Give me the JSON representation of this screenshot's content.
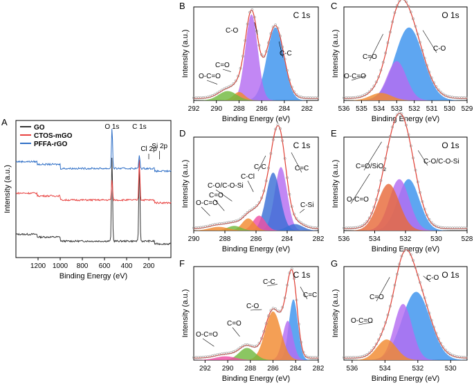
{
  "colors": {
    "GO": "#333333",
    "CTOS": "#e8413f",
    "PFFA": "#2f6fc6",
    "envelope": "#e03c31",
    "blue": "#3b93ee",
    "purple": "#b46cf2",
    "orange": "#f28a30",
    "green": "#72b93f",
    "pink": "#ee4fa4",
    "navy": "#3a6fd6",
    "red": "#e8413f",
    "orange2": "#e86a3a"
  },
  "chart_data": [
    {
      "panel": "A",
      "type": "line",
      "xlabel": "Binding Energy (eV)",
      "ylabel": "Intensity (a.u.)",
      "xlim": [
        1400,
        0
      ],
      "reversed": true,
      "xticks": [
        1200,
        1000,
        800,
        600,
        400,
        200
      ],
      "legend": [
        "GO",
        "CTOS-mGO",
        "PFFA-rGO"
      ],
      "annotations": [
        "O 1s",
        "C 1s",
        "Cl 2p",
        "Si 2p"
      ],
      "series": [
        {
          "name": "GO",
          "peaks": [
            {
              "x": 532,
              "h": 0.62
            },
            {
              "x": 285,
              "h": 0.6
            }
          ],
          "baseline": 0.12
        },
        {
          "name": "CTOS-mGO",
          "peaks": [
            {
              "x": 532,
              "h": 0.15
            },
            {
              "x": 285,
              "h": 0.3
            }
          ],
          "baseline": 0.42
        },
        {
          "name": "PFFA-rGO",
          "peaks": [
            {
              "x": 532,
              "h": 0.3
            },
            {
              "x": 285,
              "h": 0.1
            }
          ],
          "baseline": 0.65
        }
      ]
    },
    {
      "panel": "B",
      "type": "area",
      "title": "C 1s",
      "xlabel": "Binding Energy (eV)",
      "ylabel": "Intensity (a.u.)",
      "xlim": [
        292,
        281
      ],
      "xticks": [
        292,
        290,
        288,
        286,
        284,
        282
      ],
      "components": [
        {
          "label": "C-C",
          "center": 284.8,
          "height": 0.78,
          "width": 0.75,
          "color": "blue"
        },
        {
          "label": "C-O",
          "center": 286.9,
          "height": 0.92,
          "width": 0.55,
          "color": "purple"
        },
        {
          "label": "C=O",
          "center": 288.0,
          "height": 0.09,
          "width": 0.5,
          "color": "orange"
        },
        {
          "label": "O-C=O",
          "center": 289.0,
          "height": 0.1,
          "width": 0.8,
          "color": "green"
        }
      ]
    },
    {
      "panel": "C",
      "type": "area",
      "title": "O 1s",
      "xlabel": "Binding Energy (eV)",
      "ylabel": "Intensity (a.u.)",
      "xlim": [
        536,
        529
      ],
      "xticks": [
        536,
        535,
        534,
        533,
        532,
        531,
        530,
        529
      ],
      "components": [
        {
          "label": "C-O",
          "center": 532.3,
          "height": 0.78,
          "width": 0.8,
          "color": "blue"
        },
        {
          "label": "C=O",
          "center": 533.0,
          "height": 0.42,
          "width": 0.55,
          "color": "purple"
        },
        {
          "label": "O-C=O",
          "center": 533.9,
          "height": 0.08,
          "width": 0.6,
          "color": "orange"
        }
      ]
    },
    {
      "panel": "D",
      "type": "area",
      "title": "C 1s",
      "xlabel": "Binding Energy (eV)",
      "ylabel": "Intensity (a.u.)",
      "xlim": [
        290,
        282
      ],
      "xticks": [
        290,
        288,
        286,
        284,
        282
      ],
      "components": [
        {
          "label": "C=C",
          "center": 284.4,
          "height": 0.68,
          "width": 0.4,
          "color": "purple"
        },
        {
          "label": "C-C",
          "center": 284.9,
          "height": 0.62,
          "width": 0.45,
          "color": "navy"
        },
        {
          "label": "C-Si",
          "center": 283.5,
          "height": 0.07,
          "width": 0.5,
          "color": "navy"
        },
        {
          "label": "C-Cl",
          "center": 285.8,
          "height": 0.16,
          "width": 0.4,
          "color": "pink"
        },
        {
          "label": "C-O/C-O-Si",
          "center": 286.5,
          "height": 0.13,
          "width": 0.4,
          "color": "orange"
        },
        {
          "label": "C=O",
          "center": 287.4,
          "height": 0.05,
          "width": 0.45,
          "color": "green"
        },
        {
          "label": "O-C=O",
          "center": 288.4,
          "height": 0.04,
          "width": 0.6,
          "color": "orange"
        }
      ]
    },
    {
      "panel": "E",
      "type": "area",
      "title": "O 1s",
      "xlabel": "Binding Energy (eV)",
      "ylabel": "Intensity (a.u.)",
      "xlim": [
        536,
        528
      ],
      "xticks": [
        536,
        534,
        532,
        530,
        528
      ],
      "components": [
        {
          "label": "C-O/C-O-Si",
          "center": 531.8,
          "height": 0.55,
          "width": 0.7,
          "color": "blue"
        },
        {
          "label": "C=O/SiO2",
          "center": 532.4,
          "height": 0.55,
          "width": 0.65,
          "color": "purple"
        },
        {
          "label": "O-C=O",
          "center": 533.1,
          "height": 0.5,
          "width": 0.7,
          "color": "orange2"
        }
      ]
    },
    {
      "panel": "F",
      "type": "area",
      "title": "C 1s",
      "xlabel": "Binding Energy (eV)",
      "ylabel": "Intensity (a.u.)",
      "xlim": [
        293,
        282
      ],
      "xticks": [
        292,
        290,
        288,
        286,
        284,
        282
      ],
      "components": [
        {
          "label": "C=C",
          "center": 284.2,
          "height": 0.65,
          "width": 0.4,
          "color": "blue"
        },
        {
          "label": "C-C",
          "center": 284.7,
          "height": 0.42,
          "width": 0.45,
          "color": "purple"
        },
        {
          "label": "C-O",
          "center": 286.0,
          "height": 0.52,
          "width": 0.7,
          "color": "orange"
        },
        {
          "label": "C=O",
          "center": 288.3,
          "height": 0.13,
          "width": 0.7,
          "color": "green"
        },
        {
          "label": "O-C=O",
          "center": 290.2,
          "height": 0.04,
          "width": 0.9,
          "color": "pink"
        }
      ]
    },
    {
      "panel": "G",
      "type": "area",
      "title": "O 1s",
      "xlabel": "Binding Energy (eV)",
      "ylabel": "Intensity (a.u.)",
      "xlim": [
        536.5,
        529
      ],
      "xticks": [
        536,
        534,
        532,
        530
      ],
      "components": [
        {
          "label": "C-O",
          "center": 532.1,
          "height": 0.73,
          "width": 0.85,
          "color": "blue"
        },
        {
          "label": "C=O",
          "center": 532.9,
          "height": 0.6,
          "width": 0.55,
          "color": "purple"
        },
        {
          "label": "O-C=O",
          "center": 533.9,
          "height": 0.22,
          "width": 0.6,
          "color": "orange"
        }
      ]
    }
  ]
}
